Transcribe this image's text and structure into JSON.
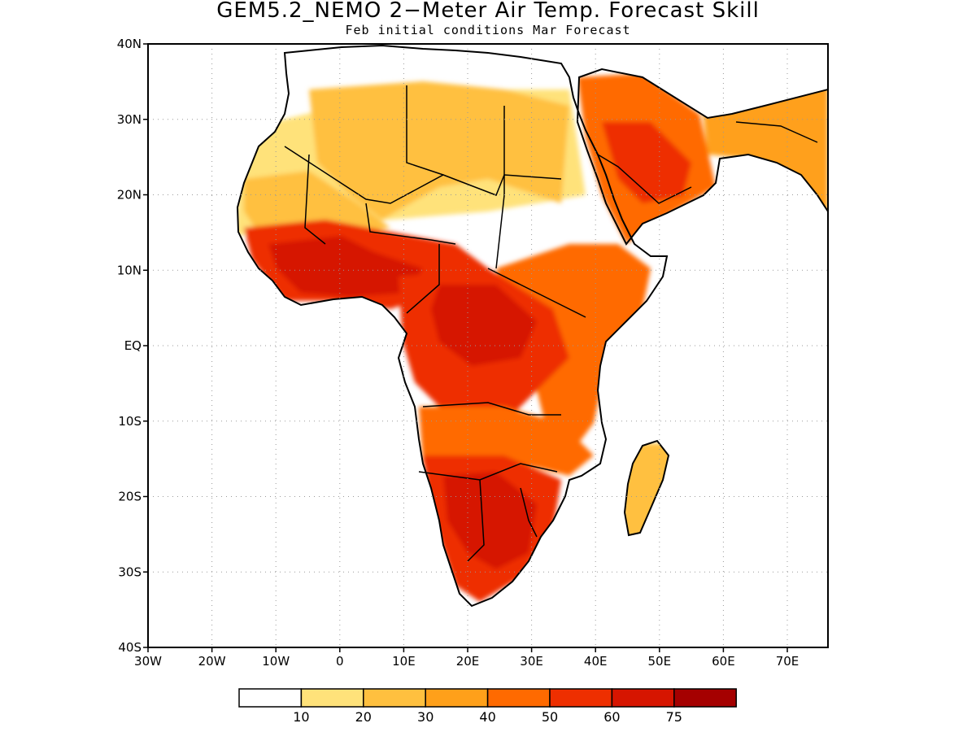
{
  "title": "GEM5.2_NEMO 2−Meter Air Temp. Forecast Skill",
  "subtitle": "Feb initial conditions  Mar Forecast",
  "lat_labels": [
    "40N",
    "30N",
    "20N",
    "10N",
    "EQ",
    "10S",
    "20S",
    "30S",
    "40S"
  ],
  "lon_labels": [
    "30W",
    "20W",
    "10W",
    "0",
    "10E",
    "20E",
    "30E",
    "40E",
    "50E",
    "60E",
    "70E"
  ],
  "colorbar": {
    "colors": [
      "#ffffff",
      "#ffe27a",
      "#ffc03f",
      "#ffa01a",
      "#ff6a00",
      "#ee2f00",
      "#d61500",
      "#a50000"
    ],
    "labels": [
      "10",
      "20",
      "30",
      "40",
      "50",
      "60",
      "75"
    ]
  },
  "skill_regions": [
    {
      "name": "sahara-west",
      "level": 1
    },
    {
      "name": "sahara-central",
      "level": 2
    },
    {
      "name": "sahara-east",
      "level": 2
    },
    {
      "name": "arabia",
      "level": 4
    },
    {
      "name": "arabia-core",
      "level": 5
    },
    {
      "name": "iran-pakistan",
      "level": 3
    },
    {
      "name": "west-africa",
      "level": 5
    },
    {
      "name": "gulf-of-guinea",
      "level": 6
    },
    {
      "name": "central-africa",
      "level": 5
    },
    {
      "name": "congo-core",
      "level": 6
    },
    {
      "name": "east-africa",
      "level": 4
    },
    {
      "name": "angola-zambia",
      "level": 4
    },
    {
      "name": "southern-africa",
      "level": 5
    },
    {
      "name": "kalahari",
      "level": 6
    },
    {
      "name": "madagascar",
      "level": 2
    }
  ]
}
